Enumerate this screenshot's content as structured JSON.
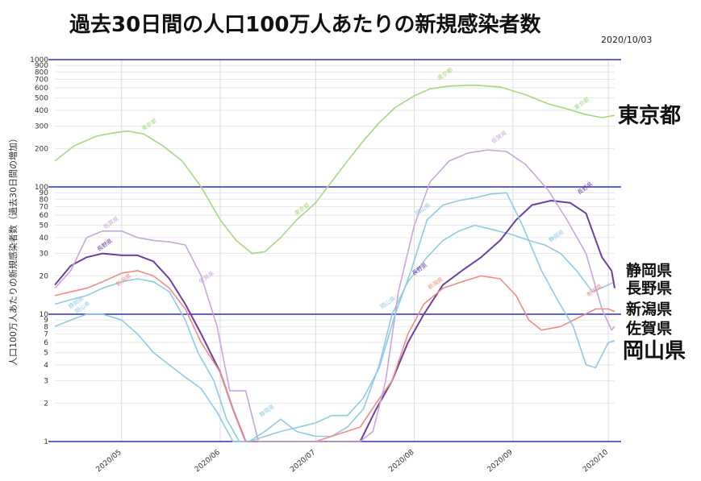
{
  "chart_data": {
    "type": "line",
    "title": "過去30日間の人口100万人あたりの新規感染者数",
    "date": "2020/10/03",
    "ylabel": "人口100万人あたりの新規感染者数（過去30日間の増加）",
    "yscale": "log",
    "ylim": [
      1,
      1000
    ],
    "yticks": [
      "1",
      "2",
      "3",
      "4",
      "5",
      "6",
      "7",
      "8",
      "9",
      "10",
      "20",
      "30",
      "40",
      "50",
      "60",
      "70",
      "80",
      "90",
      "100",
      "200",
      "300",
      "400",
      "500",
      "600",
      "700",
      "800",
      "900",
      "1000"
    ],
    "reference_lines": [
      1,
      10,
      100,
      1000
    ],
    "x_start": "2020-04-10",
    "x_end": "2020-10-03",
    "x_ticks": [
      {
        "date": "2020-05-01",
        "label": "2020/05"
      },
      {
        "date": "2020-06-01",
        "label": "2020/06"
      },
      {
        "date": "2020-07-01",
        "label": "2020/07"
      },
      {
        "date": "2020-08-01",
        "label": "2020/08"
      },
      {
        "date": "2020-09-01",
        "label": "2020/09"
      },
      {
        "date": "2020-10-01",
        "label": "2020/10"
      }
    ],
    "series": [
      {
        "name": "東京都",
        "color": "#a4d97e",
        "points": [
          [
            "2020-04-10",
            160
          ],
          [
            "2020-04-16",
            210
          ],
          [
            "2020-04-23",
            250
          ],
          [
            "2020-04-28",
            265
          ],
          [
            "2020-05-03",
            275
          ],
          [
            "2020-05-08",
            260
          ],
          [
            "2020-05-14",
            210
          ],
          [
            "2020-05-20",
            160
          ],
          [
            "2020-05-26",
            100
          ],
          [
            "2020-06-01",
            55
          ],
          [
            "2020-06-06",
            38
          ],
          [
            "2020-06-11",
            30
          ],
          [
            "2020-06-15",
            31
          ],
          [
            "2020-06-20",
            40
          ],
          [
            "2020-06-25",
            55
          ],
          [
            "2020-07-01",
            75
          ],
          [
            "2020-07-06",
            110
          ],
          [
            "2020-07-11",
            160
          ],
          [
            "2020-07-16",
            230
          ],
          [
            "2020-07-21",
            320
          ],
          [
            "2020-07-26",
            420
          ],
          [
            "2020-08-01",
            520
          ],
          [
            "2020-08-06",
            590
          ],
          [
            "2020-08-12",
            620
          ],
          [
            "2020-08-20",
            630
          ],
          [
            "2020-08-28",
            610
          ],
          [
            "2020-09-05",
            530
          ],
          [
            "2020-09-12",
            450
          ],
          [
            "2020-09-18",
            410
          ],
          [
            "2020-09-24",
            370
          ],
          [
            "2020-09-29",
            350
          ],
          [
            "2020-10-03",
            365
          ]
        ],
        "label_text": "東京都",
        "label_at": [
          [
            "2020-05-10",
            300
          ],
          [
            "2020-06-27",
            65
          ],
          [
            "2020-08-11",
            750
          ],
          [
            "2020-09-23",
            440
          ]
        ]
      },
      {
        "name": "静岡県",
        "color": "#8fcae6",
        "points": [
          [
            "2020-04-10",
            12
          ],
          [
            "2020-04-15",
            13
          ],
          [
            "2020-04-20",
            14
          ],
          [
            "2020-04-25",
            16
          ],
          [
            "2020-05-01",
            18
          ],
          [
            "2020-05-06",
            19
          ],
          [
            "2020-05-11",
            18
          ],
          [
            "2020-05-16",
            15
          ],
          [
            "2020-05-21",
            9
          ],
          [
            "2020-05-25",
            5
          ],
          [
            "2020-05-30",
            3
          ],
          [
            "2020-06-03",
            1.5
          ],
          [
            "2020-06-07",
            1
          ],
          [
            "2020-06-10",
            1
          ],
          [
            "2020-06-15",
            1.2
          ],
          [
            "2020-06-20",
            1.5
          ],
          [
            "2020-06-25",
            1.2
          ],
          [
            "2020-07-01",
            1.1
          ],
          [
            "2020-07-06",
            1.1
          ],
          [
            "2020-07-11",
            1.3
          ],
          [
            "2020-07-16",
            1.8
          ],
          [
            "2020-07-21",
            4
          ],
          [
            "2020-07-25",
            10
          ],
          [
            "2020-07-30",
            18
          ],
          [
            "2020-08-05",
            28
          ],
          [
            "2020-08-10",
            38
          ],
          [
            "2020-08-15",
            45
          ],
          [
            "2020-08-20",
            50
          ],
          [
            "2020-08-26",
            46
          ],
          [
            "2020-09-01",
            42
          ],
          [
            "2020-09-06",
            38
          ],
          [
            "2020-09-11",
            35
          ],
          [
            "2020-09-16",
            30
          ],
          [
            "2020-09-21",
            22
          ],
          [
            "2020-09-26",
            15
          ],
          [
            "2020-10-01",
            17
          ],
          [
            "2020-10-03",
            18
          ]
        ],
        "label_text": "静岡県",
        "label_at": [
          [
            "2020-04-17",
            12
          ],
          [
            "2020-06-16",
            1.7
          ],
          [
            "2020-09-15",
            40
          ]
        ]
      },
      {
        "name": "長野県",
        "color": "#6c3fa3",
        "points": [
          [
            "2020-04-10",
            17
          ],
          [
            "2020-04-15",
            24
          ],
          [
            "2020-04-20",
            28
          ],
          [
            "2020-04-25",
            30
          ],
          [
            "2020-05-01",
            29
          ],
          [
            "2020-05-06",
            29
          ],
          [
            "2020-05-11",
            26
          ],
          [
            "2020-05-16",
            19
          ],
          [
            "2020-05-21",
            12
          ],
          [
            "2020-05-26",
            7
          ],
          [
            "2020-06-01",
            3.5
          ],
          [
            "2020-06-05",
            1.8
          ],
          [
            "2020-06-09",
            1
          ],
          [
            "2020-06-15",
            1
          ],
          [
            "2020-07-01",
            1
          ],
          [
            "2020-07-15",
            1
          ],
          [
            "2020-07-20",
            1.8
          ],
          [
            "2020-07-25",
            3
          ],
          [
            "2020-07-30",
            6
          ],
          [
            "2020-08-04",
            10
          ],
          [
            "2020-08-10",
            17
          ],
          [
            "2020-08-16",
            22
          ],
          [
            "2020-08-22",
            28
          ],
          [
            "2020-08-28",
            38
          ],
          [
            "2020-09-02",
            55
          ],
          [
            "2020-09-07",
            72
          ],
          [
            "2020-09-13",
            78
          ],
          [
            "2020-09-19",
            75
          ],
          [
            "2020-09-24",
            62
          ],
          [
            "2020-09-29",
            28
          ],
          [
            "2020-10-02",
            22
          ],
          [
            "2020-10-03",
            16
          ]
        ],
        "label_text": "長野県",
        "label_at": [
          [
            "2020-04-26",
            34
          ],
          [
            "2020-08-03",
            22
          ],
          [
            "2020-09-24",
            95
          ]
        ]
      },
      {
        "name": "新潟県",
        "color": "#f28b82",
        "points": [
          [
            "2020-04-10",
            14
          ],
          [
            "2020-04-15",
            15
          ],
          [
            "2020-04-20",
            16
          ],
          [
            "2020-04-25",
            18
          ],
          [
            "2020-05-01",
            21
          ],
          [
            "2020-05-06",
            22
          ],
          [
            "2020-05-11",
            20
          ],
          [
            "2020-05-16",
            16
          ],
          [
            "2020-05-21",
            11
          ],
          [
            "2020-05-26",
            6
          ],
          [
            "2020-06-01",
            3.5
          ],
          [
            "2020-06-05",
            1.8
          ],
          [
            "2020-06-09",
            1
          ],
          [
            "2020-06-15",
            1
          ],
          [
            "2020-07-01",
            1
          ],
          [
            "2020-07-15",
            1.3
          ],
          [
            "2020-07-20",
            2
          ],
          [
            "2020-07-25",
            3
          ],
          [
            "2020-07-30",
            7
          ],
          [
            "2020-08-04",
            12
          ],
          [
            "2020-08-10",
            16
          ],
          [
            "2020-08-16",
            18
          ],
          [
            "2020-08-22",
            20
          ],
          [
            "2020-08-28",
            19
          ],
          [
            "2020-09-02",
            14
          ],
          [
            "2020-09-06",
            9
          ],
          [
            "2020-09-10",
            7.5
          ],
          [
            "2020-09-16",
            8
          ],
          [
            "2020-09-22",
            9.5
          ],
          [
            "2020-09-27",
            11
          ],
          [
            "2020-10-01",
            11
          ],
          [
            "2020-10-03",
            10.5
          ]
        ],
        "label_text": "新潟県",
        "label_at": [
          [
            "2020-05-02",
            18
          ],
          [
            "2020-08-08",
            17
          ],
          [
            "2020-09-27",
            15
          ]
        ]
      },
      {
        "name": "佐賀県",
        "color": "#c8a6dc",
        "points": [
          [
            "2020-04-10",
            16
          ],
          [
            "2020-04-15",
            22
          ],
          [
            "2020-04-20",
            40
          ],
          [
            "2020-04-25",
            45
          ],
          [
            "2020-05-01",
            45
          ],
          [
            "2020-05-06",
            40
          ],
          [
            "2020-05-11",
            38
          ],
          [
            "2020-05-16",
            37
          ],
          [
            "2020-05-21",
            35
          ],
          [
            "2020-05-26",
            20
          ],
          [
            "2020-05-31",
            8
          ],
          [
            "2020-06-04",
            2.5
          ],
          [
            "2020-06-09",
            2.5
          ],
          [
            "2020-06-13",
            1
          ],
          [
            "2020-06-20",
            1
          ],
          [
            "2020-07-01",
            1
          ],
          [
            "2020-07-15",
            1
          ],
          [
            "2020-07-19",
            1.2
          ],
          [
            "2020-07-23",
            3
          ],
          [
            "2020-07-27",
            15
          ],
          [
            "2020-08-01",
            50
          ],
          [
            "2020-08-06",
            110
          ],
          [
            "2020-08-12",
            160
          ],
          [
            "2020-08-18",
            185
          ],
          [
            "2020-08-24",
            195
          ],
          [
            "2020-08-30",
            190
          ],
          [
            "2020-09-05",
            150
          ],
          [
            "2020-09-12",
            95
          ],
          [
            "2020-09-18",
            55
          ],
          [
            "2020-09-24",
            30
          ],
          [
            "2020-09-29",
            11
          ],
          [
            "2020-10-02",
            7.5
          ],
          [
            "2020-10-03",
            8
          ]
        ],
        "label_text": "佐賀県",
        "label_at": [
          [
            "2020-04-28",
            51
          ],
          [
            "2020-05-28",
            19
          ],
          [
            "2020-08-28",
            240
          ]
        ]
      },
      {
        "name": "岡山県",
        "color": "#8fcae6",
        "points": [
          [
            "2020-04-10",
            8
          ],
          [
            "2020-04-15",
            9
          ],
          [
            "2020-04-20",
            10
          ],
          [
            "2020-04-25",
            10
          ],
          [
            "2020-05-01",
            9
          ],
          [
            "2020-05-06",
            7
          ],
          [
            "2020-05-11",
            5
          ],
          [
            "2020-05-16",
            4
          ],
          [
            "2020-05-21",
            3.2
          ],
          [
            "2020-05-26",
            2.6
          ],
          [
            "2020-05-31",
            1.7
          ],
          [
            "2020-06-05",
            1
          ],
          [
            "2020-06-10",
            1
          ],
          [
            "2020-06-20",
            1.2
          ],
          [
            "2020-07-01",
            1.4
          ],
          [
            "2020-07-06",
            1.6
          ],
          [
            "2020-07-11",
            1.6
          ],
          [
            "2020-07-16",
            2.2
          ],
          [
            "2020-07-21",
            3.8
          ],
          [
            "2020-07-26",
            10
          ],
          [
            "2020-07-31",
            22
          ],
          [
            "2020-08-05",
            55
          ],
          [
            "2020-08-10",
            72
          ],
          [
            "2020-08-15",
            78
          ],
          [
            "2020-08-20",
            82
          ],
          [
            "2020-08-25",
            88
          ],
          [
            "2020-08-30",
            90
          ],
          [
            "2020-09-04",
            50
          ],
          [
            "2020-09-10",
            22
          ],
          [
            "2020-09-15",
            13
          ],
          [
            "2020-09-20",
            8
          ],
          [
            "2020-09-24",
            4
          ],
          [
            "2020-09-27",
            3.8
          ],
          [
            "2020-10-01",
            6
          ],
          [
            "2020-10-03",
            6.2
          ]
        ],
        "label_text": "岡山県",
        "label_at": [
          [
            "2020-04-19",
            11
          ],
          [
            "2020-07-24",
            12
          ],
          [
            "2020-08-04",
            65
          ]
        ]
      }
    ],
    "right_labels": [
      "静岡県",
      "長野県",
      "新潟県",
      "佐賀県",
      "岡山県"
    ],
    "right_label_main": "東京都"
  }
}
